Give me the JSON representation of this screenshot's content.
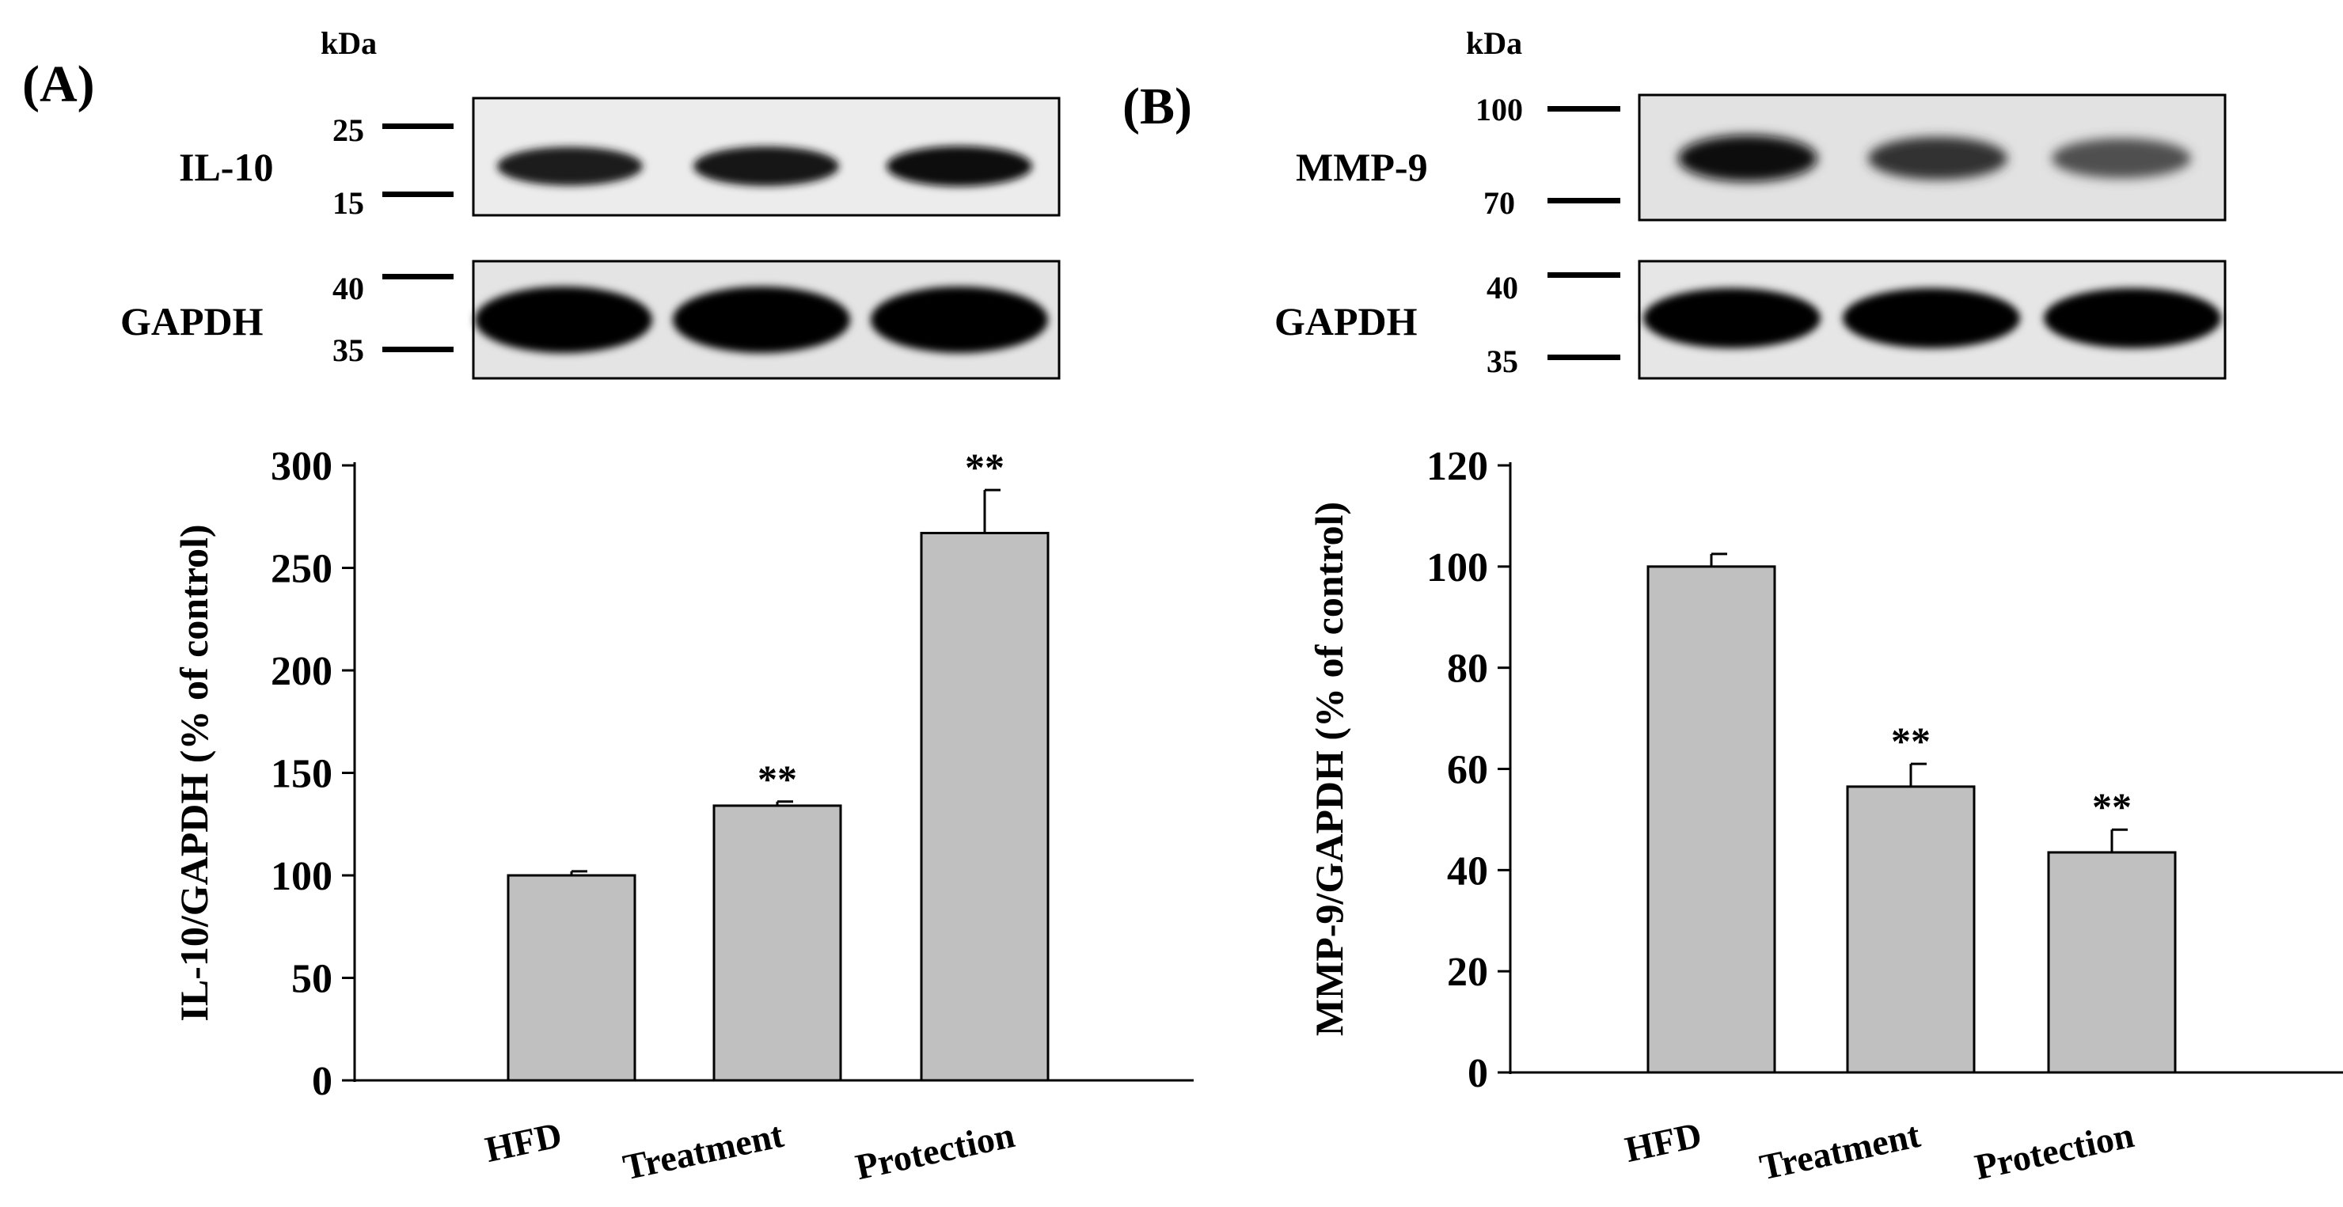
{
  "panels": [
    {
      "id": "A",
      "panel_label": "(A)",
      "kda_label": "kDa",
      "target_label": "IL-10",
      "target_markers": [
        "25",
        "15"
      ],
      "loading_label": "GAPDH",
      "loading_markers": [
        "40",
        "35"
      ],
      "target_band_intensity": [
        0.85,
        0.9,
        0.95
      ],
      "loading_band_intensity": [
        1,
        1,
        1
      ]
    },
    {
      "id": "B",
      "panel_label": "(B)",
      "kda_label": "kDa",
      "target_label": "MMP-9",
      "target_markers": [
        "100",
        "70"
      ],
      "loading_label": "GAPDH",
      "loading_markers": [
        "40",
        "35"
      ],
      "target_band_intensity": [
        0.95,
        0.75,
        0.6
      ],
      "loading_band_intensity": [
        1,
        1,
        1
      ]
    }
  ],
  "chart_data": [
    {
      "type": "bar",
      "panel": "A",
      "categories": [
        "HFD",
        "Treatment",
        "Protection"
      ],
      "values": [
        100,
        134,
        267
      ],
      "errors": [
        2,
        2,
        21
      ],
      "significance": [
        "",
        "**",
        "**"
      ],
      "ylabel": "IL-10/GAPDH (% of control)",
      "xlabel": "",
      "ylim": [
        0,
        300
      ],
      "yticks": [
        0,
        50,
        100,
        150,
        200,
        250,
        300
      ],
      "bar_color": "#c0c0c0",
      "grid": false
    },
    {
      "type": "bar",
      "panel": "B",
      "categories": [
        "HFD",
        "Treatment",
        "Protection"
      ],
      "values": [
        100,
        56.5,
        43.5
      ],
      "errors": [
        2.5,
        4.5,
        4.5
      ],
      "significance": [
        "",
        "**",
        "**"
      ],
      "ylabel": "MMP-9/GAPDH (% of control)",
      "xlabel": "",
      "ylim": [
        0,
        120
      ],
      "yticks": [
        0,
        20,
        40,
        60,
        80,
        100,
        120
      ],
      "bar_color": "#c0c0c0",
      "grid": false
    }
  ]
}
